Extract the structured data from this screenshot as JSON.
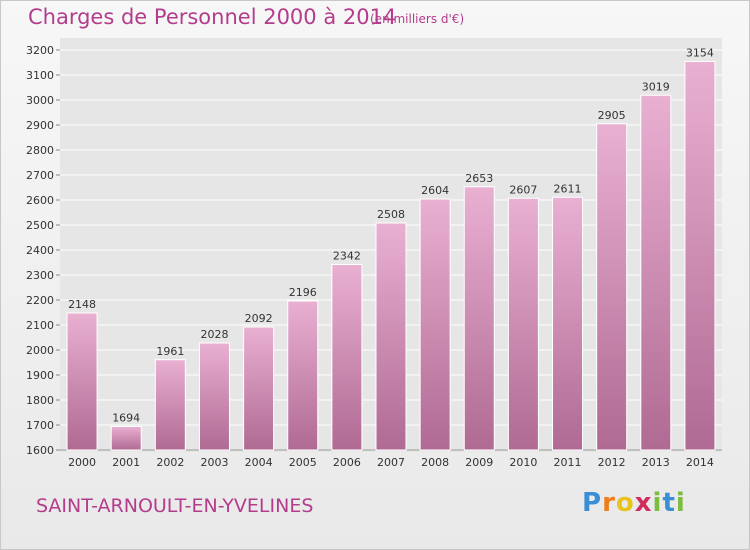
{
  "header": {
    "title": "Charges de Personnel 2000 à 2014",
    "subtitle": "(en milliers d'€)"
  },
  "footer": {
    "commune": "SAINT-ARNOULT-EN-YVELINES",
    "logo": {
      "letters": [
        "P",
        "r",
        "o",
        "x",
        "i",
        "t",
        "i"
      ],
      "colors": [
        "#3a8fd4",
        "#ef7d1a",
        "#e8c21f",
        "#cf2d5d",
        "#7cbc3f",
        "#3a8fd4",
        "#7cbc3f"
      ]
    }
  },
  "colors": {
    "bar_light": "#e9b0d2",
    "bar_dark": "#b06a93",
    "text_accent": "#b43c8c",
    "grid": "#ffffff"
  },
  "chart_data": {
    "type": "bar",
    "title": "Charges de Personnel 2000 à 2014",
    "subtitle": "(en milliers d'€)",
    "xlabel": "",
    "ylabel": "",
    "categories": [
      "2000",
      "2001",
      "2002",
      "2003",
      "2004",
      "2005",
      "2006",
      "2007",
      "2008",
      "2009",
      "2010",
      "2011",
      "2012",
      "2013",
      "2014"
    ],
    "values": [
      2148,
      1694,
      1961,
      2028,
      2092,
      2196,
      2342,
      2508,
      2604,
      2653,
      2607,
      2611,
      2905,
      3019,
      3154
    ],
    "ylim": [
      1600,
      3200
    ],
    "yticks": [
      1600,
      1700,
      1800,
      1900,
      2000,
      2100,
      2200,
      2300,
      2400,
      2500,
      2600,
      2700,
      2800,
      2900,
      3000,
      3100,
      3200
    ],
    "grid": true,
    "legend": "none"
  }
}
